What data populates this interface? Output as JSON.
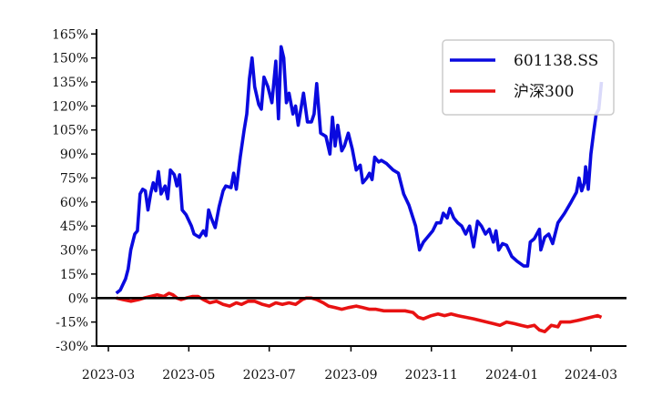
{
  "chart_data": {
    "type": "line",
    "title": "",
    "xlabel": "",
    "ylabel": "",
    "x_ticks": [
      "2023-03",
      "2023-05",
      "2023-07",
      "2023-09",
      "2023-11",
      "2024-01",
      "2024-03"
    ],
    "x_range": [
      "2023-02-20",
      "2024-03-28"
    ],
    "y_ticks": [
      "-30%",
      "-15%",
      "0%",
      "15%",
      "30%",
      "45%",
      "60%",
      "75%",
      "90%",
      "105%",
      "120%",
      "135%",
      "150%",
      "165%"
    ],
    "ylim": [
      -30,
      168
    ],
    "grid": false,
    "legend_position": "top-right",
    "zero_line": true,
    "series": [
      {
        "name": "601138.SS",
        "color": "#0a0adf",
        "points": [
          [
            "2023-03-07",
            3
          ],
          [
            "2023-03-10",
            5
          ],
          [
            "2023-03-14",
            12
          ],
          [
            "2023-03-16",
            18
          ],
          [
            "2023-03-18",
            30
          ],
          [
            "2023-03-21",
            40
          ],
          [
            "2023-03-23",
            42
          ],
          [
            "2023-03-25",
            65
          ],
          [
            "2023-03-27",
            68
          ],
          [
            "2023-03-29",
            67
          ],
          [
            "2023-03-31",
            55
          ],
          [
            "2023-04-02",
            65
          ],
          [
            "2023-04-04",
            72
          ],
          [
            "2023-04-06",
            67
          ],
          [
            "2023-04-08",
            79
          ],
          [
            "2023-04-10",
            65
          ],
          [
            "2023-04-13",
            70
          ],
          [
            "2023-04-15",
            62
          ],
          [
            "2023-04-17",
            80
          ],
          [
            "2023-04-20",
            77
          ],
          [
            "2023-04-22",
            70
          ],
          [
            "2023-04-24",
            77
          ],
          [
            "2023-04-26",
            55
          ],
          [
            "2023-04-29",
            52
          ],
          [
            "2023-05-03",
            45
          ],
          [
            "2023-05-05",
            40
          ],
          [
            "2023-05-09",
            38
          ],
          [
            "2023-05-12",
            42
          ],
          [
            "2023-05-14",
            39
          ],
          [
            "2023-05-16",
            55
          ],
          [
            "2023-05-18",
            50
          ],
          [
            "2023-05-21",
            44
          ],
          [
            "2023-05-24",
            57
          ],
          [
            "2023-05-27",
            67
          ],
          [
            "2023-05-29",
            70
          ],
          [
            "2023-06-02",
            69
          ],
          [
            "2023-06-04",
            78
          ],
          [
            "2023-06-06",
            68
          ],
          [
            "2023-06-09",
            88
          ],
          [
            "2023-06-12",
            105
          ],
          [
            "2023-06-14",
            115
          ],
          [
            "2023-06-16",
            137
          ],
          [
            "2023-06-18",
            150
          ],
          [
            "2023-06-20",
            132
          ],
          [
            "2023-06-23",
            121
          ],
          [
            "2023-06-25",
            118
          ],
          [
            "2023-06-27",
            138
          ],
          [
            "2023-06-30",
            132
          ],
          [
            "2023-07-03",
            122
          ],
          [
            "2023-07-06",
            148
          ],
          [
            "2023-07-08",
            112
          ],
          [
            "2023-07-10",
            157
          ],
          [
            "2023-07-12",
            150
          ],
          [
            "2023-07-14",
            122
          ],
          [
            "2023-07-16",
            128
          ],
          [
            "2023-07-19",
            115
          ],
          [
            "2023-07-21",
            120
          ],
          [
            "2023-07-23",
            108
          ],
          [
            "2023-07-27",
            128
          ],
          [
            "2023-07-30",
            110
          ],
          [
            "2023-08-02",
            110
          ],
          [
            "2023-08-04",
            115
          ],
          [
            "2023-08-06",
            134
          ],
          [
            "2023-08-09",
            103
          ],
          [
            "2023-08-13",
            101
          ],
          [
            "2023-08-16",
            90
          ],
          [
            "2023-08-18",
            113
          ],
          [
            "2023-08-20",
            95
          ],
          [
            "2023-08-22",
            108
          ],
          [
            "2023-08-25",
            92
          ],
          [
            "2023-08-27",
            95
          ],
          [
            "2023-08-30",
            103
          ],
          [
            "2023-09-02",
            93
          ],
          [
            "2023-09-05",
            80
          ],
          [
            "2023-09-08",
            83
          ],
          [
            "2023-09-10",
            72
          ],
          [
            "2023-09-13",
            75
          ],
          [
            "2023-09-15",
            78
          ],
          [
            "2023-09-17",
            74
          ],
          [
            "2023-09-19",
            88
          ],
          [
            "2023-09-22",
            85
          ],
          [
            "2023-09-24",
            86
          ],
          [
            "2023-09-28",
            84
          ],
          [
            "2023-10-03",
            80
          ],
          [
            "2023-10-07",
            78
          ],
          [
            "2023-10-11",
            65
          ],
          [
            "2023-10-15",
            58
          ],
          [
            "2023-10-20",
            45
          ],
          [
            "2023-10-23",
            30
          ],
          [
            "2023-10-26",
            35
          ],
          [
            "2023-10-29",
            38
          ],
          [
            "2023-11-02",
            42
          ],
          [
            "2023-11-05",
            47
          ],
          [
            "2023-11-08",
            47
          ],
          [
            "2023-11-10",
            53
          ],
          [
            "2023-11-13",
            50
          ],
          [
            "2023-11-15",
            56
          ],
          [
            "2023-11-18",
            50
          ],
          [
            "2023-11-21",
            47
          ],
          [
            "2023-11-24",
            45
          ],
          [
            "2023-11-27",
            40
          ],
          [
            "2023-11-30",
            45
          ],
          [
            "2023-12-03",
            32
          ],
          [
            "2023-12-06",
            48
          ],
          [
            "2023-12-09",
            45
          ],
          [
            "2023-12-12",
            40
          ],
          [
            "2023-12-15",
            43
          ],
          [
            "2023-12-18",
            35
          ],
          [
            "2023-12-20",
            42
          ],
          [
            "2023-12-22",
            30
          ],
          [
            "2023-12-25",
            34
          ],
          [
            "2023-12-28",
            33
          ],
          [
            "2024-01-01",
            26
          ],
          [
            "2024-01-05",
            23
          ],
          [
            "2024-01-10",
            20
          ],
          [
            "2024-01-13",
            20
          ],
          [
            "2024-01-15",
            35
          ],
          [
            "2024-01-18",
            37
          ],
          [
            "2024-01-22",
            43
          ],
          [
            "2024-01-23",
            30
          ],
          [
            "2024-01-26",
            38
          ],
          [
            "2024-01-29",
            40
          ],
          [
            "2024-02-01",
            34
          ],
          [
            "2024-02-05",
            47
          ],
          [
            "2024-02-10",
            53
          ],
          [
            "2024-02-15",
            60
          ],
          [
            "2024-02-19",
            66
          ],
          [
            "2024-02-21",
            75
          ],
          [
            "2024-02-23",
            67
          ],
          [
            "2024-02-25",
            72
          ],
          [
            "2024-02-26",
            82
          ],
          [
            "2024-02-28",
            68
          ],
          [
            "2024-03-01",
            90
          ],
          [
            "2024-03-03",
            103
          ],
          [
            "2024-03-05",
            115
          ],
          [
            "2024-03-07",
            118
          ],
          [
            "2024-03-09",
            135
          ]
        ]
      },
      {
        "name": "沪深300",
        "color": "#e81212",
        "points": [
          [
            "2023-03-07",
            0
          ],
          [
            "2023-03-12",
            -1
          ],
          [
            "2023-03-18",
            -2
          ],
          [
            "2023-03-24",
            -1
          ],
          [
            "2023-03-28",
            0
          ],
          [
            "2023-04-02",
            1
          ],
          [
            "2023-04-07",
            2
          ],
          [
            "2023-04-12",
            1
          ],
          [
            "2023-04-16",
            3
          ],
          [
            "2023-04-19",
            2
          ],
          [
            "2023-04-22",
            0
          ],
          [
            "2023-04-25",
            -1
          ],
          [
            "2023-04-29",
            0
          ],
          [
            "2023-05-04",
            1
          ],
          [
            "2023-05-08",
            1
          ],
          [
            "2023-05-12",
            -1
          ],
          [
            "2023-05-17",
            -3
          ],
          [
            "2023-05-22",
            -2
          ],
          [
            "2023-05-27",
            -4
          ],
          [
            "2023-06-01",
            -5
          ],
          [
            "2023-06-06",
            -3
          ],
          [
            "2023-06-10",
            -4
          ],
          [
            "2023-06-15",
            -2
          ],
          [
            "2023-06-20",
            -2
          ],
          [
            "2023-06-26",
            -4
          ],
          [
            "2023-07-01",
            -5
          ],
          [
            "2023-07-06",
            -3
          ],
          [
            "2023-07-11",
            -4
          ],
          [
            "2023-07-16",
            -3
          ],
          [
            "2023-07-21",
            -4
          ],
          [
            "2023-07-26",
            -1
          ],
          [
            "2023-07-29",
            0
          ],
          [
            "2023-08-02",
            0
          ],
          [
            "2023-08-06",
            -1
          ],
          [
            "2023-08-11",
            -3
          ],
          [
            "2023-08-15",
            -5
          ],
          [
            "2023-08-20",
            -6
          ],
          [
            "2023-08-25",
            -7
          ],
          [
            "2023-08-30",
            -6
          ],
          [
            "2023-09-05",
            -5
          ],
          [
            "2023-09-10",
            -6
          ],
          [
            "2023-09-15",
            -7
          ],
          [
            "2023-09-20",
            -7
          ],
          [
            "2023-09-26",
            -8
          ],
          [
            "2023-10-06",
            -8
          ],
          [
            "2023-10-12",
            -8
          ],
          [
            "2023-10-18",
            -9
          ],
          [
            "2023-10-22",
            -12
          ],
          [
            "2023-10-26",
            -13
          ],
          [
            "2023-11-01",
            -11
          ],
          [
            "2023-11-06",
            -10
          ],
          [
            "2023-11-11",
            -11
          ],
          [
            "2023-11-16",
            -10
          ],
          [
            "2023-11-21",
            -11
          ],
          [
            "2023-11-27",
            -12
          ],
          [
            "2023-12-03",
            -13
          ],
          [
            "2023-12-08",
            -14
          ],
          [
            "2023-12-13",
            -15
          ],
          [
            "2023-12-18",
            -16
          ],
          [
            "2023-12-23",
            -17
          ],
          [
            "2023-12-28",
            -15
          ],
          [
            "2024-01-03",
            -16
          ],
          [
            "2024-01-08",
            -17
          ],
          [
            "2024-01-13",
            -18
          ],
          [
            "2024-01-18",
            -17
          ],
          [
            "2024-01-22",
            -20
          ],
          [
            "2024-01-26",
            -21
          ],
          [
            "2024-01-31",
            -17
          ],
          [
            "2024-02-05",
            -18
          ],
          [
            "2024-02-07",
            -15
          ],
          [
            "2024-02-14",
            -15
          ],
          [
            "2024-02-20",
            -14
          ],
          [
            "2024-02-25",
            -13
          ],
          [
            "2024-03-01",
            -12
          ],
          [
            "2024-03-06",
            -11
          ],
          [
            "2024-03-09",
            -12
          ]
        ]
      }
    ]
  }
}
